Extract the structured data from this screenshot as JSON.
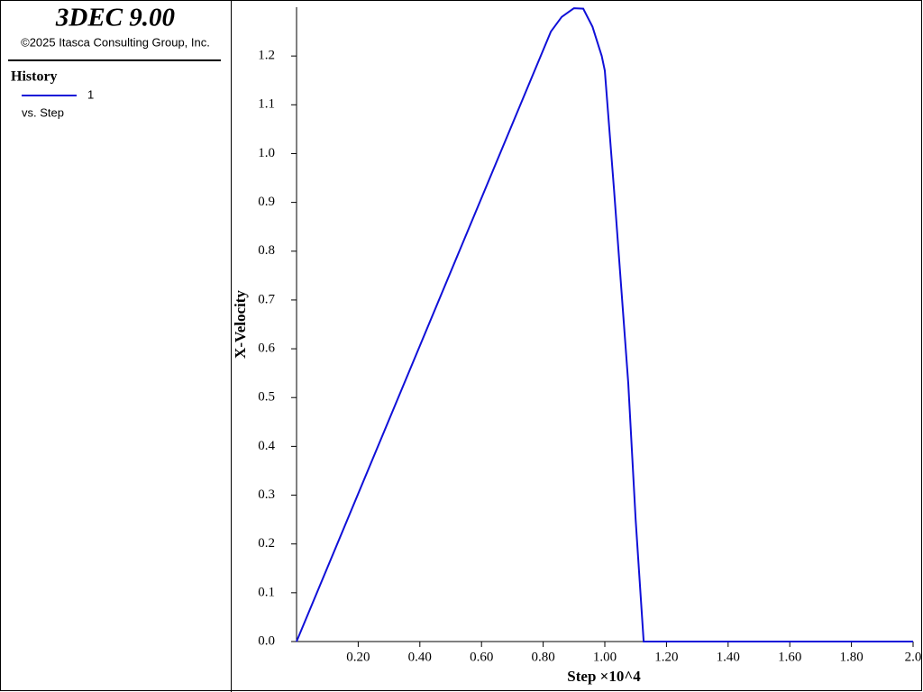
{
  "chart_data": {
    "type": "line",
    "app_title": "3DEC 9.00",
    "copyright": "©2025 Itasca Consulting Group, Inc.",
    "legend_title": "History",
    "legend_note": "vs. Step",
    "xlabel": "Step ×10^4",
    "ylabel": "X-Velocity",
    "x": [
      0,
      0.825,
      0.86,
      0.9,
      0.93,
      0.96,
      0.99,
      1.0,
      1.03,
      1.076,
      1.1,
      1.126,
      2.0
    ],
    "series": [
      {
        "name": "1",
        "color": "#1010d8",
        "values": [
          0,
          1.25,
          1.28,
          1.298,
          1.297,
          1.26,
          1.2,
          1.17,
          0.925,
          0.53,
          0.25,
          0,
          0
        ]
      }
    ],
    "xlim": [
      0,
      2.0
    ],
    "ylim": [
      0,
      1.3
    ],
    "xticks": [
      {
        "value": 0.2,
        "label": "0.20"
      },
      {
        "value": 0.4,
        "label": "0.40"
      },
      {
        "value": 0.6,
        "label": "0.60"
      },
      {
        "value": 0.8,
        "label": "0.80"
      },
      {
        "value": 1.0,
        "label": "1.00"
      },
      {
        "value": 1.2,
        "label": "1.20"
      },
      {
        "value": 1.4,
        "label": "1.40"
      },
      {
        "value": 1.6,
        "label": "1.60"
      },
      {
        "value": 1.8,
        "label": "1.80"
      },
      {
        "value": 2.0,
        "label": "2.0"
      }
    ],
    "yticks": [
      {
        "value": 0,
        "label": "0.0"
      },
      0.1,
      0.2,
      0.3,
      0.4,
      0.5,
      0.6,
      0.7,
      0.8,
      0.9,
      {
        "value": 1.0,
        "label": "1.0"
      },
      1.1,
      1.2
    ]
  }
}
